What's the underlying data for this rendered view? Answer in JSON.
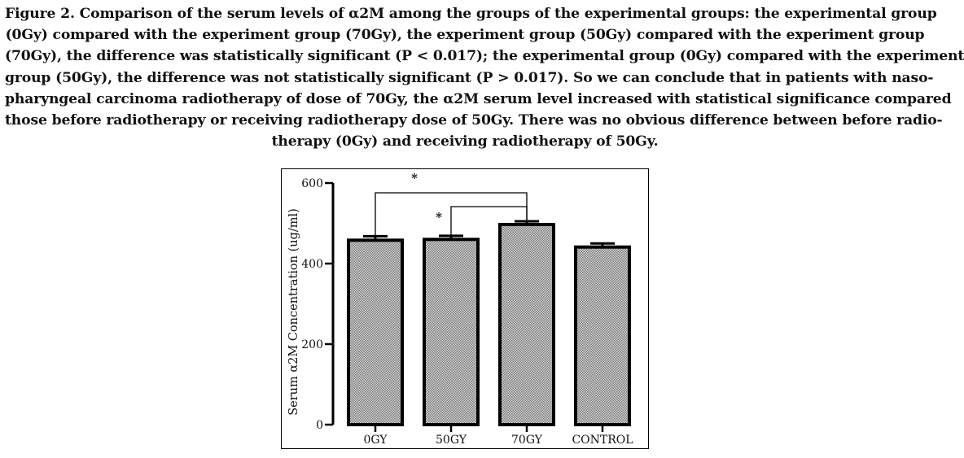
{
  "caption": {
    "lines": [
      "Figure 2. Comparison of the serum levels of α2M among the groups of the experimental groups: the experimental group",
      "(0Gy) compared with the experiment group (70Gy), the experiment group (50Gy) compared with the experiment group",
      "(70Gy), the difference was statistically significant (P < 0.017); the experimental group (0Gy) compared with the experiment",
      "group (50Gy), the difference was not statistically significant (P > 0.017). So we can conclude that in patients with naso-",
      "pharyngeal carcinoma radiotherapy of dose of 70Gy, the α2M serum level increased with statistical significance compared",
      "those before radiotherapy or receiving radiotherapy dose of 50Gy. There was no obvious difference between before radio-",
      "therapy (0Gy) and receiving radiotherapy of 50Gy."
    ]
  },
  "chart_data": {
    "type": "bar",
    "categories": [
      "0GY",
      "50GY",
      "70GY",
      "CONTROL"
    ],
    "values": [
      458,
      460,
      497,
      441
    ],
    "error_upper": [
      468,
      469,
      505,
      450
    ],
    "xlabel": "",
    "ylabel": "Serum α2M Concentration (ug/ml)",
    "ylim": [
      0,
      600
    ],
    "yticks": [
      0,
      200,
      400,
      600
    ],
    "ytick_labels": [
      "0",
      "200",
      "400",
      "600"
    ],
    "grid": false,
    "legend": "none",
    "bar_fill": "#b8b8b8",
    "significance": [
      {
        "from": "0GY",
        "to": "70GY",
        "label": "*"
      },
      {
        "from": "50GY",
        "to": "70GY",
        "label": "*"
      }
    ]
  }
}
